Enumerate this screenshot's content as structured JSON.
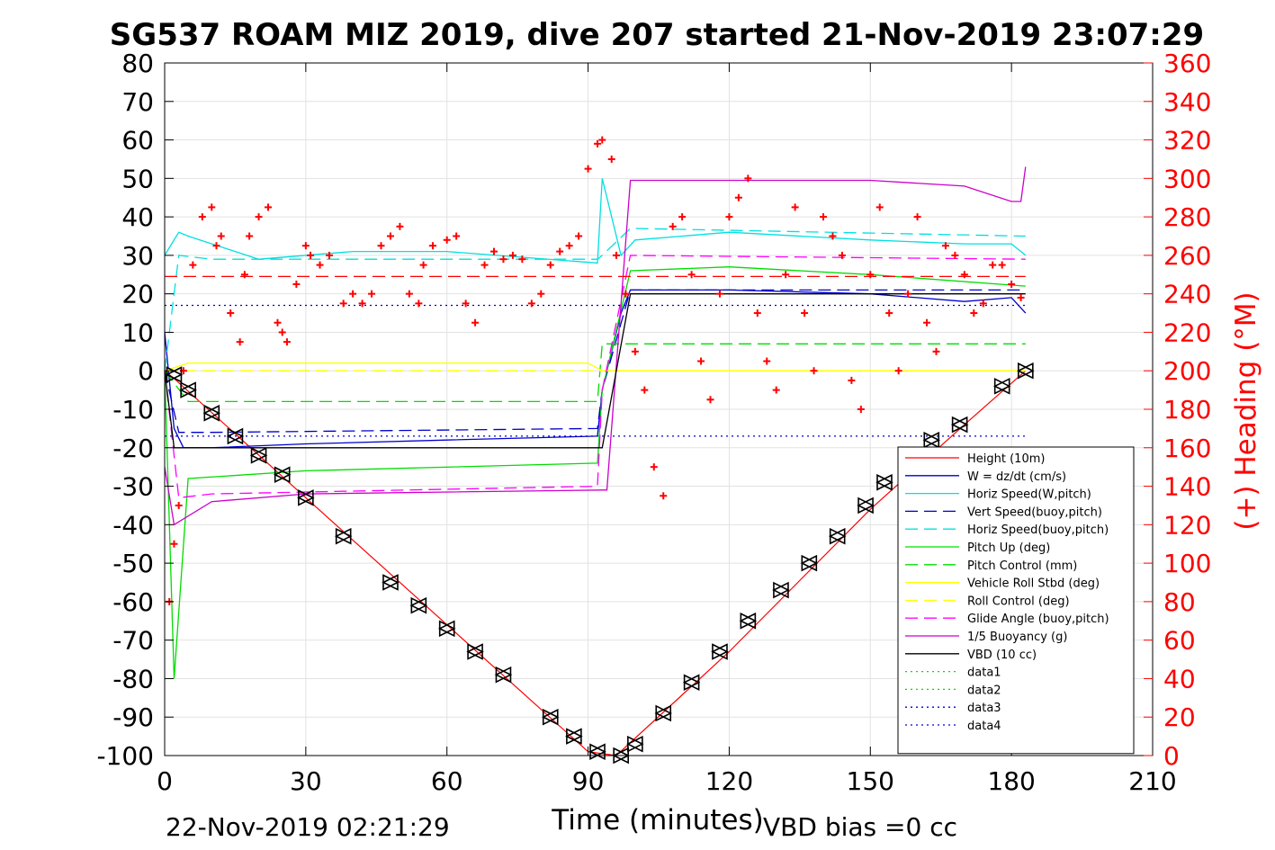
{
  "chart_data": {
    "type": "line",
    "title": "SG537 ROAM MIZ 2019, dive 207 started 21-Nov-2019 23:07:29",
    "xlabel": "Time (minutes)",
    "ylabel": "",
    "y2label": "(+) Heading (°M)",
    "xlim": [
      0,
      210
    ],
    "ylim": [
      -100,
      80
    ],
    "y2lim": [
      0,
      360
    ],
    "xticks": [
      0,
      30,
      60,
      90,
      120,
      150,
      180,
      210
    ],
    "yticks": [
      -100,
      -90,
      -80,
      -70,
      -60,
      -50,
      -40,
      -30,
      -20,
      -10,
      0,
      10,
      20,
      30,
      40,
      50,
      60,
      70,
      80
    ],
    "y2ticks": [
      0,
      20,
      40,
      60,
      80,
      100,
      120,
      140,
      160,
      180,
      200,
      220,
      240,
      260,
      280,
      300,
      320,
      340,
      360
    ],
    "grid": true,
    "legend_position": "bottom-right",
    "footer_left": "22-Nov-2019 02:21:29",
    "footer_right": "VBD bias =0 cc",
    "series": [
      {
        "name": "Height (10m)",
        "color": "#ff0000",
        "style": "solid",
        "x": [
          0,
          2,
          30,
          60,
          90,
          96,
          120,
          150,
          170,
          183
        ],
        "y": [
          0,
          -2,
          -33,
          -66,
          -99,
          -100,
          -73,
          -36,
          -14,
          0
        ]
      },
      {
        "name": "W = dz/dt (cm/s)",
        "color": "#0000cc",
        "style": "solid",
        "x": [
          0,
          2,
          4,
          10,
          30,
          60,
          92,
          93,
          97,
          99,
          120,
          150,
          170,
          180,
          183
        ],
        "y": [
          10,
          -15,
          -20,
          -20,
          -19,
          -18,
          -17,
          -5,
          15,
          21,
          21,
          20,
          18,
          19,
          15
        ]
      },
      {
        "name": "Horiz Speed(W,pitch)",
        "color": "#00e0e0",
        "style": "solid",
        "x": [
          0,
          3,
          5,
          20,
          40,
          60,
          92,
          93,
          97,
          100,
          120,
          150,
          170,
          180,
          183
        ],
        "y": [
          30,
          36,
          35,
          29,
          31,
          31,
          28,
          50,
          30,
          34,
          36,
          34,
          33,
          33,
          30
        ]
      },
      {
        "name": "Vert Speed(buoy,pitch)",
        "color": "#0000cc",
        "style": "dashed",
        "x": [
          0,
          3,
          10,
          92,
          93,
          99,
          183
        ],
        "y": [
          0,
          -16,
          -16,
          -15,
          -5,
          21,
          21
        ]
      },
      {
        "name": "Horiz Speed(buoy,pitch)",
        "color": "#00e0e0",
        "style": "dashed",
        "x": [
          0,
          3,
          10,
          92,
          93,
          99,
          183
        ],
        "y": [
          0,
          30,
          29,
          29,
          30,
          37,
          35
        ]
      },
      {
        "name": "Pitch Up (deg)",
        "color": "#00dd00",
        "style": "solid",
        "x": [
          0,
          2,
          5,
          30,
          92,
          93,
          99,
          120,
          150,
          183
        ],
        "y": [
          0,
          -80,
          -28,
          -26,
          -24,
          -5,
          26,
          27,
          25,
          22
        ]
      },
      {
        "name": "Pitch Control (mm)",
        "color": "#00dd00",
        "style": "dashed",
        "x": [
          0,
          5,
          92,
          93,
          183
        ],
        "y": [
          0,
          -8,
          -8,
          7,
          7
        ]
      },
      {
        "name": "Vehicle Roll Stbd (deg)",
        "color": "#ffff00",
        "style": "solid",
        "x": [
          0,
          5,
          90,
          93,
          100,
          183
        ],
        "y": [
          0,
          2,
          2,
          0,
          0,
          0
        ]
      },
      {
        "name": "Roll Control (deg)",
        "color": "#ffff00",
        "style": "dashed",
        "x": [
          0,
          183
        ],
        "y": [
          0,
          0
        ]
      },
      {
        "name": "Glide Angle (buoy,pitch)",
        "color": "#ff00ff",
        "style": "dashed",
        "x": [
          0,
          3,
          10,
          92,
          93,
          99,
          183
        ],
        "y": [
          0,
          -33,
          -32,
          -30,
          -5,
          30,
          29
        ]
      },
      {
        "name": "1/5 Buoyancy (g)",
        "color": "#cc00cc",
        "style": "solid",
        "x": [
          0,
          2,
          10,
          30,
          93,
          94,
          99,
          150,
          170,
          180,
          182,
          183
        ],
        "y": [
          -25,
          -40,
          -34,
          -32,
          -31,
          -31,
          49.5,
          49.5,
          48,
          44,
          44,
          53
        ]
      },
      {
        "name": "VBD (10 cc)",
        "color": "#000000",
        "style": "solid",
        "x": [
          0,
          2,
          4,
          93,
          99,
          180,
          183
        ],
        "y": [
          0,
          -20,
          -20,
          -20,
          20,
          20,
          20
        ]
      },
      {
        "name": "data1",
        "color": "#00dd00",
        "style": "dotted",
        "x": [],
        "y": []
      },
      {
        "name": "data2",
        "color": "#00dd00",
        "style": "dotted",
        "x": [],
        "y": []
      },
      {
        "name": "data3",
        "color": "#0000cc",
        "style": "dotted",
        "x": [
          0,
          183
        ],
        "y": [
          -17,
          -17
        ]
      },
      {
        "name": "data4",
        "color": "#0000cc",
        "style": "dotted",
        "x": [
          0,
          183
        ],
        "y": [
          17,
          17
        ]
      }
    ],
    "extra_lines": [
      {
        "color": "#ff0000",
        "style": "dashed",
        "x": [
          0,
          183
        ],
        "y": [
          24.5,
          24.5
        ]
      }
    ],
    "heading_points": {
      "color": "#ff0000",
      "marker": "+",
      "axis": "y2",
      "x": [
        1,
        2,
        3,
        4,
        6,
        8,
        10,
        11,
        12,
        14,
        16,
        17,
        18,
        20,
        22,
        24,
        25,
        26,
        28,
        30,
        31,
        33,
        35,
        38,
        40,
        42,
        44,
        46,
        48,
        50,
        52,
        54,
        55,
        57,
        60,
        62,
        64,
        66,
        68,
        70,
        72,
        74,
        76,
        78,
        80,
        82,
        84,
        86,
        88,
        90,
        92,
        93,
        95,
        96,
        98,
        100,
        102,
        104,
        106,
        108,
        110,
        112,
        114,
        116,
        118,
        120,
        122,
        124,
        126,
        128,
        130,
        132,
        134,
        136,
        138,
        140,
        142,
        144,
        146,
        148,
        150,
        152,
        154,
        156,
        158,
        160,
        162,
        164,
        166,
        168,
        170,
        172,
        174,
        176,
        178,
        180,
        182
      ],
      "y": [
        80,
        110,
        130,
        200,
        255,
        280,
        285,
        265,
        270,
        230,
        215,
        250,
        270,
        280,
        285,
        225,
        220,
        215,
        245,
        265,
        260,
        255,
        260,
        235,
        240,
        235,
        240,
        265,
        270,
        275,
        240,
        235,
        255,
        265,
        268,
        270,
        235,
        225,
        255,
        262,
        258,
        260,
        258,
        235,
        240,
        255,
        262,
        265,
        270,
        305,
        318,
        320,
        310,
        260,
        240,
        210,
        190,
        150,
        135,
        275,
        280,
        250,
        205,
        185,
        240,
        280,
        290,
        300,
        230,
        205,
        190,
        250,
        285,
        230,
        200,
        280,
        270,
        260,
        195,
        180,
        250,
        285,
        230,
        200,
        240,
        280,
        225,
        210,
        265,
        260,
        250,
        230,
        235,
        255,
        255,
        245,
        238
      ]
    },
    "dive_markers": {
      "color": "#000000",
      "x": [
        2,
        5,
        10,
        15,
        20,
        25,
        30,
        38,
        48,
        54,
        60,
        66,
        72,
        82,
        87,
        92,
        97,
        100,
        106,
        112,
        118,
        124,
        131,
        137,
        143,
        149,
        153,
        163,
        169,
        178,
        183
      ],
      "y": [
        -1,
        -5,
        -11,
        -17,
        -22,
        -27,
        -33,
        -43,
        -55,
        -61,
        -67,
        -73,
        -79,
        -90,
        -95,
        -99,
        -100,
        -97,
        -89,
        -81,
        -73,
        -65,
        -57,
        -50,
        -43,
        -35,
        -29,
        -18,
        -14,
        -4,
        0
      ]
    }
  }
}
